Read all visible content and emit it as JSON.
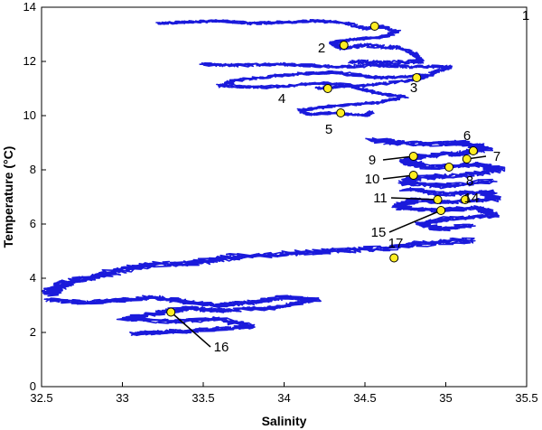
{
  "chart_data": {
    "type": "scatter",
    "title": "",
    "xlabel": "Salinity",
    "ylabel": "Temperature (°C)",
    "xlim": [
      32.5,
      35.5
    ],
    "ylim": [
      0,
      14
    ],
    "xticks": [
      "32.5",
      "33",
      "33.5",
      "34",
      "34.5",
      "35",
      "35.5"
    ],
    "yticks": [
      "0",
      "2",
      "4",
      "6",
      "8",
      "10",
      "12",
      "14"
    ],
    "grid": false,
    "legend": "none",
    "track_color": "#1a1adb",
    "marker_color": "#ffee22",
    "track_segments": [
      {
        "x": [
          33.23,
          33.4,
          33.6,
          33.8,
          34.0,
          34.2,
          34.4,
          34.5,
          34.6,
          34.7,
          34.6,
          34.4,
          34.3,
          34.35
        ],
        "y": [
          13.4,
          13.45,
          13.5,
          13.4,
          13.45,
          13.5,
          13.4,
          13.2,
          13.3,
          13.1,
          12.9,
          12.8,
          12.7,
          12.5
        ],
        "spread": [
          0.05,
          0.1
        ]
      },
      {
        "x": [
          34.35,
          34.5,
          34.7,
          34.8,
          34.85,
          34.6,
          34.4
        ],
        "y": [
          12.5,
          12.6,
          12.5,
          12.3,
          12.0,
          11.95,
          12.0
        ],
        "spread": [
          0.04,
          0.15
        ]
      },
      {
        "x": [
          33.5,
          33.7,
          34.0,
          34.3,
          34.6,
          34.8,
          35.03,
          34.9,
          34.6,
          34.3,
          34.0,
          33.7,
          33.6,
          33.9,
          34.2,
          34.5,
          34.8,
          34.9
        ],
        "y": [
          11.9,
          11.85,
          11.9,
          11.8,
          11.85,
          11.8,
          11.8,
          11.5,
          11.4,
          11.6,
          11.5,
          11.3,
          11.1,
          11.05,
          11.2,
          11.1,
          11.3,
          11.5
        ],
        "spread": [
          0.05,
          0.12
        ]
      },
      {
        "x": [
          34.2,
          34.4,
          34.6,
          34.75,
          34.6,
          34.3,
          34.1,
          34.15,
          34.3,
          34.5,
          34.55
        ],
        "y": [
          11.0,
          11.1,
          10.8,
          10.7,
          10.5,
          10.35,
          10.2,
          10.05,
          10.1,
          10.0,
          10.15
        ],
        "spread": [
          0.04,
          0.1
        ]
      },
      {
        "x": [
          34.55,
          34.7,
          34.9,
          35.1,
          35.25,
          35.1,
          34.85,
          34.75,
          34.9,
          35.2,
          35.35,
          35.1,
          34.8,
          34.75,
          35.0,
          35.3
        ],
        "y": [
          9.1,
          9.0,
          8.95,
          9.0,
          8.8,
          8.6,
          8.5,
          8.3,
          8.1,
          8.2,
          8.0,
          7.8,
          7.7,
          7.5,
          7.4,
          7.6
        ],
        "spread": [
          0.1,
          0.18
        ]
      },
      {
        "x": [
          34.75,
          35.0,
          35.25,
          35.3,
          35.0,
          34.8,
          34.7,
          34.95,
          35.2,
          35.3,
          35.0,
          34.85,
          34.95,
          35.15
        ],
        "y": [
          7.3,
          7.1,
          7.2,
          6.9,
          6.8,
          6.9,
          6.6,
          6.5,
          6.6,
          6.3,
          6.2,
          6.0,
          5.8,
          5.95
        ],
        "spread": [
          0.1,
          0.15
        ]
      },
      {
        "x": [
          35.15,
          34.9,
          34.6,
          34.3,
          34.0,
          33.7,
          33.5,
          33.2,
          33.0,
          32.85,
          32.7,
          32.6,
          32.55
        ],
        "y": [
          5.4,
          5.3,
          5.1,
          5.0,
          4.9,
          4.8,
          4.6,
          4.5,
          4.3,
          4.1,
          3.9,
          3.7,
          3.4
        ],
        "spread": [
          0.12,
          0.2
        ]
      },
      {
        "x": [
          32.55,
          32.8,
          33.0,
          33.2,
          33.4,
          33.6,
          33.8,
          34.0,
          34.2,
          33.9,
          33.6,
          33.4,
          33.2,
          33.0,
          33.3,
          33.6,
          33.8,
          33.5,
          33.25,
          33.05
        ],
        "y": [
          3.2,
          3.1,
          3.2,
          3.3,
          3.1,
          3.0,
          3.1,
          3.3,
          3.2,
          2.9,
          2.8,
          2.9,
          2.7,
          2.5,
          2.4,
          2.5,
          2.2,
          2.1,
          2.0,
          1.95
        ],
        "spread": [
          0.1,
          0.15
        ]
      }
    ],
    "points": [
      {
        "label": "1",
        "x": 34.56,
        "y": 13.3
      },
      {
        "label": "2",
        "x": 34.37,
        "y": 12.6
      },
      {
        "label": "3",
        "x": 34.82,
        "y": 11.4
      },
      {
        "label": "4",
        "x": 34.27,
        "y": 11.0
      },
      {
        "label": "5",
        "x": 34.35,
        "y": 10.1
      },
      {
        "label": "6",
        "x": 35.17,
        "y": 8.7
      },
      {
        "label": "7",
        "x": 35.13,
        "y": 8.4
      },
      {
        "label": "8",
        "x": 35.02,
        "y": 8.1
      },
      {
        "label": "9",
        "x": 34.8,
        "y": 8.5
      },
      {
        "label": "10",
        "x": 34.8,
        "y": 7.8
      },
      {
        "label": "11",
        "x": 34.95,
        "y": 6.9
      },
      {
        "label": "14",
        "x": 35.12,
        "y": 6.9
      },
      {
        "label": "15",
        "x": 34.97,
        "y": 6.5
      },
      {
        "label": "16",
        "x": 33.3,
        "y": 2.75
      },
      {
        "label": "17",
        "x": 34.68,
        "y": 4.75
      }
    ]
  }
}
